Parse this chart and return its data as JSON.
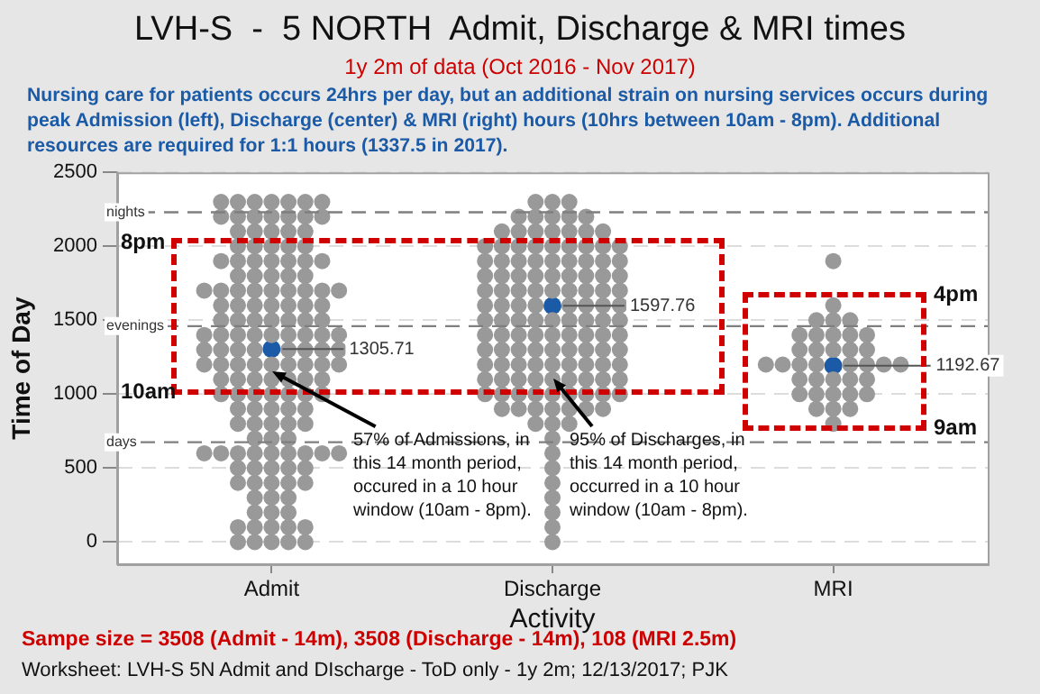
{
  "chart_data": {
    "type": "scatter",
    "title": "LVH-S  -  5 NORTH  Admit, Discharge & MRI times",
    "subtitle": "1y 2m of data (Oct 2016 - Nov 2017)",
    "xlabel": "Activity",
    "ylabel": "Time of Day",
    "annotations": [
      "Nursing care for patients occurs 24hrs per day, but an additional strain on nursing services occurs during peak Admission (left), Discharge (center) & MRI (right) hours (10hrs between 10am - 8pm).  Additional resources are required for 1:1 hours (1337.5 in 2017).",
      "8pm",
      "10am",
      "4pm",
      "9am",
      {
        "text": "57% of Admissions, in this 14 month period, occured in a 10 hour window (10am - 8pm).",
        "x": "Admit",
        "y": 1150
      },
      {
        "text": "95% of Discharges, in this 14 month period, occurred in a 10 hour window (10am - 8pm).",
        "x": "Discharge",
        "y": 1100
      },
      "Sampe size = 3508 (Admit - 14m), 3508 (Discharge - 14m), 108 (MRI 2.5m)",
      "Worksheet: LVH-S 5N Admit and DIscharge - ToD only - 1y 2m; 12/13/2017; PJK"
    ],
    "categories": [
      "Admit",
      "Discharge",
      "MRI"
    ],
    "ylim": [
      -150,
      2500
    ],
    "yticks": [
      0,
      500,
      1000,
      1500,
      2000,
      2500
    ],
    "grid": "y",
    "legend": false,
    "marker": "circle",
    "ref_lines": [
      {
        "axis": "y",
        "value": 2230,
        "label": "nights",
        "color": "#7f7f7f",
        "line_style": "dashed"
      },
      {
        "axis": "y",
        "value": 1460,
        "label": "evenings",
        "color": "#7f7f7f",
        "line_style": "dashed"
      },
      {
        "axis": "y",
        "value": 675,
        "label": "days",
        "color": "#7f7f7f",
        "line_style": "dashed"
      }
    ],
    "series": [
      {
        "color": "#999999",
        "x": [
          "Admit",
          "Admit",
          "Admit",
          "Admit",
          "Admit",
          "Admit",
          "Admit",
          "Admit",
          "Admit",
          "Admit",
          "Admit",
          "Admit",
          "Admit",
          "Admit",
          "Admit",
          "Admit",
          "Admit",
          "Admit",
          "Admit",
          "Admit",
          "Admit",
          "Admit",
          "Admit",
          "Admit",
          "Admit",
          "Admit",
          "Admit",
          "Admit",
          "Admit",
          "Admit",
          "Admit",
          "Admit",
          "Admit",
          "Admit",
          "Admit",
          "Admit",
          "Admit",
          "Admit",
          "Admit",
          "Admit",
          "Admit",
          "Admit",
          "Admit",
          "Admit",
          "Admit",
          "Admit",
          "Admit",
          "Admit",
          "Admit",
          "Admit",
          "Admit",
          "Admit",
          "Admit",
          "Admit",
          "Admit",
          "Admit",
          "Admit",
          "Admit",
          "Admit",
          "Admit",
          "Admit",
          "Admit",
          "Admit",
          "Admit",
          "Admit",
          "Admit",
          "Admit",
          "Admit",
          "Admit",
          "Admit",
          "Admit",
          "Admit",
          "Admit",
          "Admit",
          "Admit",
          "Admit",
          "Admit",
          "Admit",
          "Admit",
          "Admit",
          "Admit",
          "Admit",
          "Admit",
          "Admit",
          "Admit",
          "Admit",
          "Admit",
          "Admit",
          "Admit",
          "Admit",
          "Admit",
          "Admit",
          "Admit",
          "Admit",
          "Admit",
          "Admit",
          "Admit",
          "Admit",
          "Admit",
          "Admit",
          "Admit",
          "Admit",
          "Admit",
          "Admit",
          "Admit",
          "Admit",
          "Admit",
          "Admit",
          "Admit",
          "Admit",
          "Admit",
          "Admit",
          "Admit",
          "Admit",
          "Admit",
          "Admit",
          "Admit",
          "Admit",
          "Admit",
          "Admit",
          "Admit",
          "Admit",
          "Admit",
          "Admit",
          "Admit",
          "Admit",
          "Admit",
          "Admit",
          "Admit",
          "Admit",
          "Admit",
          "Admit",
          "Admit",
          "Admit",
          "Admit",
          "Admit",
          "Admit",
          "Admit",
          "Admit",
          "Admit",
          "Admit",
          "Admit",
          "Admit",
          "Admit",
          "Admit",
          "Admit",
          "Admit"
        ],
        "values": [
          0,
          0,
          0,
          0,
          0,
          100,
          100,
          100,
          100,
          100,
          200,
          200,
          200,
          300,
          300,
          300,
          400,
          400,
          400,
          400,
          400,
          500,
          500,
          500,
          500,
          500,
          600,
          600,
          600,
          600,
          600,
          600,
          600,
          600,
          600,
          700,
          700,
          700,
          800,
          800,
          800,
          800,
          800,
          900,
          900,
          900,
          900,
          900,
          1000,
          1000,
          1000,
          1000,
          1000,
          1000,
          1000,
          1100,
          1100,
          1100,
          1100,
          1100,
          1100,
          1100,
          1200,
          1200,
          1200,
          1200,
          1200,
          1200,
          1200,
          1200,
          1200,
          1300,
          1300,
          1300,
          1300,
          1300,
          1300,
          1300,
          1300,
          1400,
          1400,
          1400,
          1400,
          1400,
          1400,
          1400,
          1400,
          1400,
          1500,
          1500,
          1500,
          1500,
          1500,
          1500,
          1500,
          1600,
          1600,
          1600,
          1600,
          1600,
          1600,
          1600,
          1700,
          1700,
          1700,
          1700,
          1700,
          1700,
          1700,
          1700,
          1700,
          1800,
          1800,
          1800,
          1800,
          1800,
          1900,
          1900,
          1900,
          1900,
          1900,
          1900,
          1900,
          2000,
          2000,
          2000,
          2000,
          2000,
          2100,
          2100,
          2100,
          2100,
          2100,
          2200,
          2200,
          2200,
          2200,
          2200,
          2200,
          2200,
          2300,
          2300,
          2300,
          2300,
          2300,
          2300,
          2300
        ]
      },
      {
        "color": "#999999",
        "x": [
          "Discharge",
          "Discharge",
          "Discharge",
          "Discharge",
          "Discharge",
          "Discharge",
          "Discharge",
          "Discharge",
          "Discharge",
          "Discharge",
          "Discharge",
          "Discharge",
          "Discharge",
          "Discharge",
          "Discharge",
          "Discharge",
          "Discharge",
          "Discharge",
          "Discharge",
          "Discharge",
          "Discharge",
          "Discharge",
          "Discharge",
          "Discharge",
          "Discharge",
          "Discharge",
          "Discharge",
          "Discharge",
          "Discharge",
          "Discharge",
          "Discharge",
          "Discharge",
          "Discharge",
          "Discharge",
          "Discharge",
          "Discharge",
          "Discharge",
          "Discharge",
          "Discharge",
          "Discharge",
          "Discharge",
          "Discharge",
          "Discharge",
          "Discharge",
          "Discharge",
          "Discharge",
          "Discharge",
          "Discharge",
          "Discharge",
          "Discharge",
          "Discharge",
          "Discharge",
          "Discharge",
          "Discharge",
          "Discharge",
          "Discharge",
          "Discharge",
          "Discharge",
          "Discharge",
          "Discharge",
          "Discharge",
          "Discharge",
          "Discharge",
          "Discharge",
          "Discharge",
          "Discharge",
          "Discharge",
          "Discharge",
          "Discharge",
          "Discharge",
          "Discharge",
          "Discharge",
          "Discharge",
          "Discharge",
          "Discharge",
          "Discharge",
          "Discharge",
          "Discharge",
          "Discharge",
          "Discharge",
          "Discharge",
          "Discharge",
          "Discharge",
          "Discharge",
          "Discharge",
          "Discharge",
          "Discharge",
          "Discharge",
          "Discharge",
          "Discharge",
          "Discharge",
          "Discharge",
          "Discharge",
          "Discharge",
          "Discharge",
          "Discharge",
          "Discharge",
          "Discharge",
          "Discharge",
          "Discharge",
          "Discharge",
          "Discharge",
          "Discharge",
          "Discharge",
          "Discharge",
          "Discharge",
          "Discharge",
          "Discharge",
          "Discharge",
          "Discharge",
          "Discharge",
          "Discharge",
          "Discharge",
          "Discharge",
          "Discharge",
          "Discharge",
          "Discharge",
          "Discharge",
          "Discharge",
          "Discharge",
          "Discharge",
          "Discharge",
          "Discharge",
          "Discharge",
          "Discharge",
          "Discharge",
          "Discharge",
          "Discharge",
          "Discharge",
          "Discharge",
          "Discharge"
        ],
        "values": [
          0,
          100,
          200,
          300,
          400,
          500,
          600,
          700,
          800,
          800,
          800,
          900,
          900,
          900,
          900,
          900,
          900,
          900,
          1000,
          1000,
          1000,
          1000,
          1000,
          1000,
          1000,
          1000,
          1000,
          1100,
          1100,
          1100,
          1100,
          1100,
          1100,
          1100,
          1100,
          1100,
          1200,
          1200,
          1200,
          1200,
          1200,
          1200,
          1200,
          1200,
          1200,
          1300,
          1300,
          1300,
          1300,
          1300,
          1300,
          1300,
          1300,
          1300,
          1400,
          1400,
          1400,
          1400,
          1400,
          1400,
          1400,
          1400,
          1400,
          1500,
          1500,
          1500,
          1500,
          1500,
          1500,
          1500,
          1500,
          1500,
          1600,
          1600,
          1600,
          1600,
          1600,
          1600,
          1600,
          1600,
          1700,
          1700,
          1700,
          1700,
          1700,
          1700,
          1700,
          1700,
          1700,
          1800,
          1800,
          1800,
          1800,
          1800,
          1800,
          1800,
          1800,
          1800,
          1900,
          1900,
          1900,
          1900,
          1900,
          1900,
          1900,
          1900,
          1900,
          2000,
          2000,
          2000,
          2000,
          2000,
          2000,
          2000,
          2000,
          2000,
          2100,
          2100,
          2100,
          2100,
          2100,
          2100,
          2100,
          2200,
          2200,
          2200,
          2200,
          2200,
          2300,
          2300,
          2300
        ]
      },
      {
        "color": "#999999",
        "x": [
          "MRI",
          "MRI",
          "MRI",
          "MRI",
          "MRI",
          "MRI",
          "MRI",
          "MRI",
          "MRI",
          "MRI",
          "MRI",
          "MRI",
          "MRI",
          "MRI",
          "MRI",
          "MRI",
          "MRI",
          "MRI",
          "MRI",
          "MRI",
          "MRI",
          "MRI",
          "MRI",
          "MRI",
          "MRI",
          "MRI",
          "MRI",
          "MRI",
          "MRI",
          "MRI",
          "MRI",
          "MRI",
          "MRI",
          "MRI",
          "MRI",
          "MRI",
          "MRI"
        ],
        "values": [
          800,
          900,
          900,
          900,
          1000,
          1000,
          1000,
          1000,
          1000,
          1100,
          1100,
          1100,
          1100,
          1100,
          1200,
          1200,
          1200,
          1200,
          1200,
          1200,
          1200,
          1200,
          1300,
          1300,
          1300,
          1300,
          1300,
          1400,
          1400,
          1400,
          1400,
          1400,
          1500,
          1500,
          1500,
          1600,
          1900
        ]
      },
      {
        "color": "#1a5aa6",
        "x": [
          "Admit",
          "Discharge",
          "MRI"
        ],
        "values": [
          1305.71,
          1597.76,
          1192.67
        ],
        "value_labels": [
          "1305.71",
          "1597.76",
          "1192.67"
        ]
      }
    ]
  }
}
